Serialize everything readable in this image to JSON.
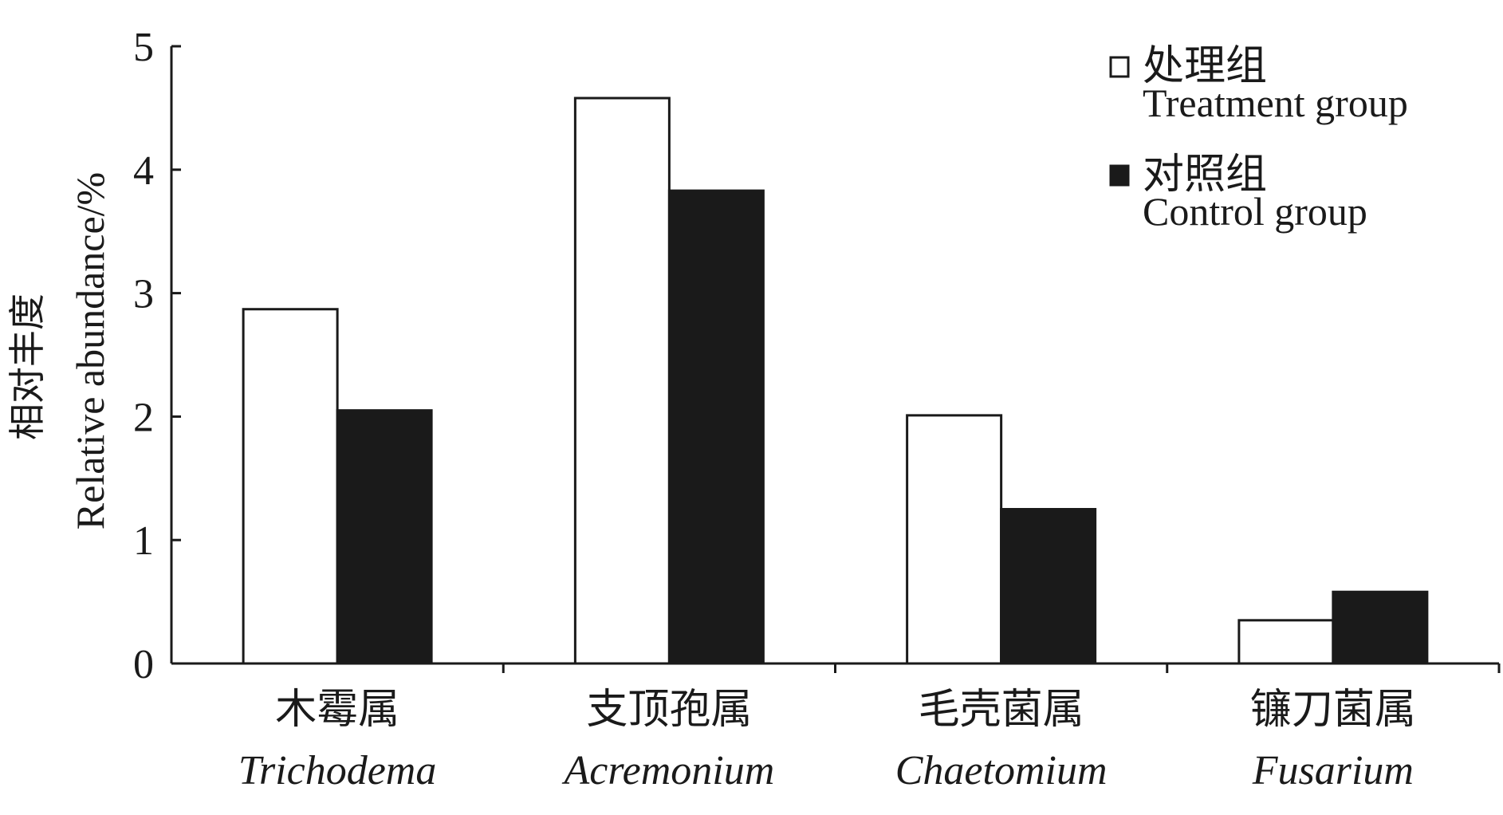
{
  "chart_data": {
    "type": "bar",
    "title": "",
    "ylabel_cn": "相对丰度",
    "ylabel": "Relative abundance/%",
    "xlabel": "",
    "ylim": [
      0,
      5
    ],
    "yticks": [
      0,
      1,
      2,
      3,
      4,
      5
    ],
    "grid": false,
    "legend_position": "top-right",
    "categories": [
      {
        "cn": "木霉属",
        "latin": "Trichodema"
      },
      {
        "cn": "支顶孢属",
        "latin": "Acremonium"
      },
      {
        "cn": "毛壳菌属",
        "latin": "Chaetomium"
      },
      {
        "cn": "镰刀菌属",
        "latin": "Fusarium"
      }
    ],
    "series": [
      {
        "name_cn": "处理组",
        "name": "Treatment group",
        "color": "#ffffff",
        "stroke": "#1a1a1a",
        "values": [
          2.87,
          4.58,
          2.01,
          0.35
        ]
      },
      {
        "name_cn": "对照组",
        "name": "Control group",
        "color": "#1a1a1a",
        "stroke": "#1a1a1a",
        "values": [
          2.05,
          3.83,
          1.25,
          0.58
        ]
      }
    ]
  }
}
